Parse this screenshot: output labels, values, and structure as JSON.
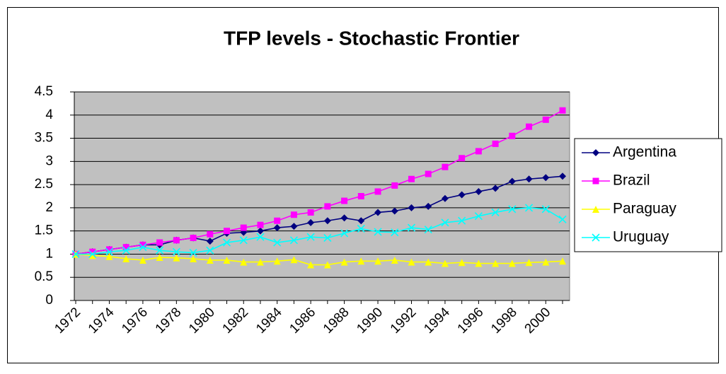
{
  "chart_data": {
    "type": "line",
    "title": "TFP levels - Stochastic Frontier",
    "categories": [
      "1972",
      null,
      "1974",
      null,
      "1976",
      null,
      "1978",
      null,
      "1980",
      null,
      "1982",
      null,
      "1984",
      null,
      "1986",
      null,
      "1988",
      null,
      "1990",
      null,
      "1992",
      null,
      "1994",
      null,
      "1996",
      null,
      "1998",
      null,
      "2000",
      null
    ],
    "series": [
      {
        "name": "Argentina",
        "color": "#000080",
        "marker": "diamond",
        "values": [
          1.0,
          1.05,
          1.1,
          1.15,
          1.2,
          1.2,
          1.3,
          1.35,
          1.28,
          1.45,
          1.47,
          1.5,
          1.57,
          1.6,
          1.68,
          1.72,
          1.78,
          1.72,
          1.9,
          1.93,
          2.0,
          2.03,
          2.2,
          2.28,
          2.35,
          2.42,
          2.57,
          2.62,
          2.65,
          2.68
        ]
      },
      {
        "name": "Brazil",
        "color": "#ff00ff",
        "marker": "square",
        "values": [
          1.0,
          1.05,
          1.1,
          1.15,
          1.2,
          1.25,
          1.3,
          1.35,
          1.43,
          1.5,
          1.57,
          1.63,
          1.72,
          1.85,
          1.9,
          2.03,
          2.15,
          2.25,
          2.35,
          2.48,
          2.62,
          2.73,
          2.88,
          3.07,
          3.22,
          3.38,
          3.55,
          3.75,
          3.9,
          4.1
        ]
      },
      {
        "name": "Paraguay",
        "color": "#ffff00",
        "marker": "triangle",
        "values": [
          1.0,
          0.97,
          0.95,
          0.9,
          0.87,
          0.93,
          0.92,
          0.9,
          0.87,
          0.87,
          0.83,
          0.83,
          0.85,
          0.88,
          0.77,
          0.77,
          0.83,
          0.85,
          0.85,
          0.87,
          0.83,
          0.83,
          0.8,
          0.82,
          0.8,
          0.8,
          0.8,
          0.82,
          0.83,
          0.85
        ]
      },
      {
        "name": "Uruguay",
        "color": "#00ffff",
        "marker": "x",
        "values": [
          1.0,
          1.0,
          1.05,
          1.08,
          1.15,
          1.08,
          1.05,
          1.03,
          1.08,
          1.25,
          1.3,
          1.37,
          1.25,
          1.3,
          1.37,
          1.35,
          1.45,
          1.55,
          1.48,
          1.47,
          1.57,
          1.53,
          1.68,
          1.72,
          1.82,
          1.9,
          1.97,
          2.0,
          1.97,
          1.75
        ]
      }
    ],
    "ylim": [
      0,
      4.5
    ],
    "yticks": [
      0,
      0.5,
      1,
      1.5,
      2,
      2.5,
      3,
      3.5,
      4,
      4.5
    ],
    "grid": true,
    "plot_background": "#c0c0c0",
    "legend": "right"
  }
}
